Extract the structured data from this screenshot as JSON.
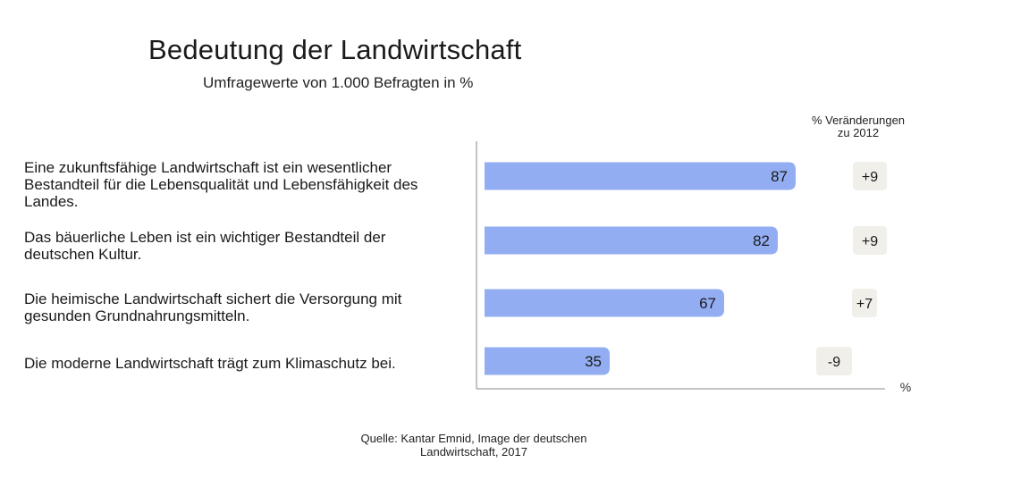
{
  "title": "Bedeutung der Landwirtschaft",
  "subtitle": "Umfragewerte von 1.000 Befragten in %",
  "change_header": [
    "% Veränderungen",
    "zu 2012"
  ],
  "axis_unit": "%",
  "source": [
    "Quelle: Kantar Emnid, Image der deutschen",
    "Landwirtschaft, 2017"
  ],
  "colors": {
    "bar": "#92adf1",
    "change_box": "#f1efe9",
    "axis": "#888888"
  },
  "chart_data": {
    "type": "bar",
    "orientation": "horizontal",
    "title": "Bedeutung der Landwirtschaft",
    "subtitle": "Umfragewerte von 1.000 Befragten in %",
    "xlabel": "%",
    "xlim": [
      0,
      100
    ],
    "grid": false,
    "categories": [
      [
        "Eine zukunftsfähige Landwirtschaft ist ein wesentlicher",
        "Bestandteil für die Lebensqualität und Lebensfähigkeit des",
        "Landes."
      ],
      [
        "Das bäuerliche Leben ist ein wichtiger Bestandteil der",
        "deutschen Kultur."
      ],
      [
        "Die heimische Landwirtschaft sichert die Versorgung mit",
        "gesunden Grundnahrungsmitteln."
      ],
      [
        "Die moderne Landwirtschaft trägt zum Klimaschutz bei."
      ]
    ],
    "values": [
      87,
      82,
      67,
      35
    ],
    "value_labels": [
      "87",
      "82",
      "67",
      "35"
    ],
    "change_values": [
      9,
      9,
      7,
      -9
    ],
    "change_labels": [
      "+9",
      "+9",
      "+7",
      "-9"
    ]
  }
}
